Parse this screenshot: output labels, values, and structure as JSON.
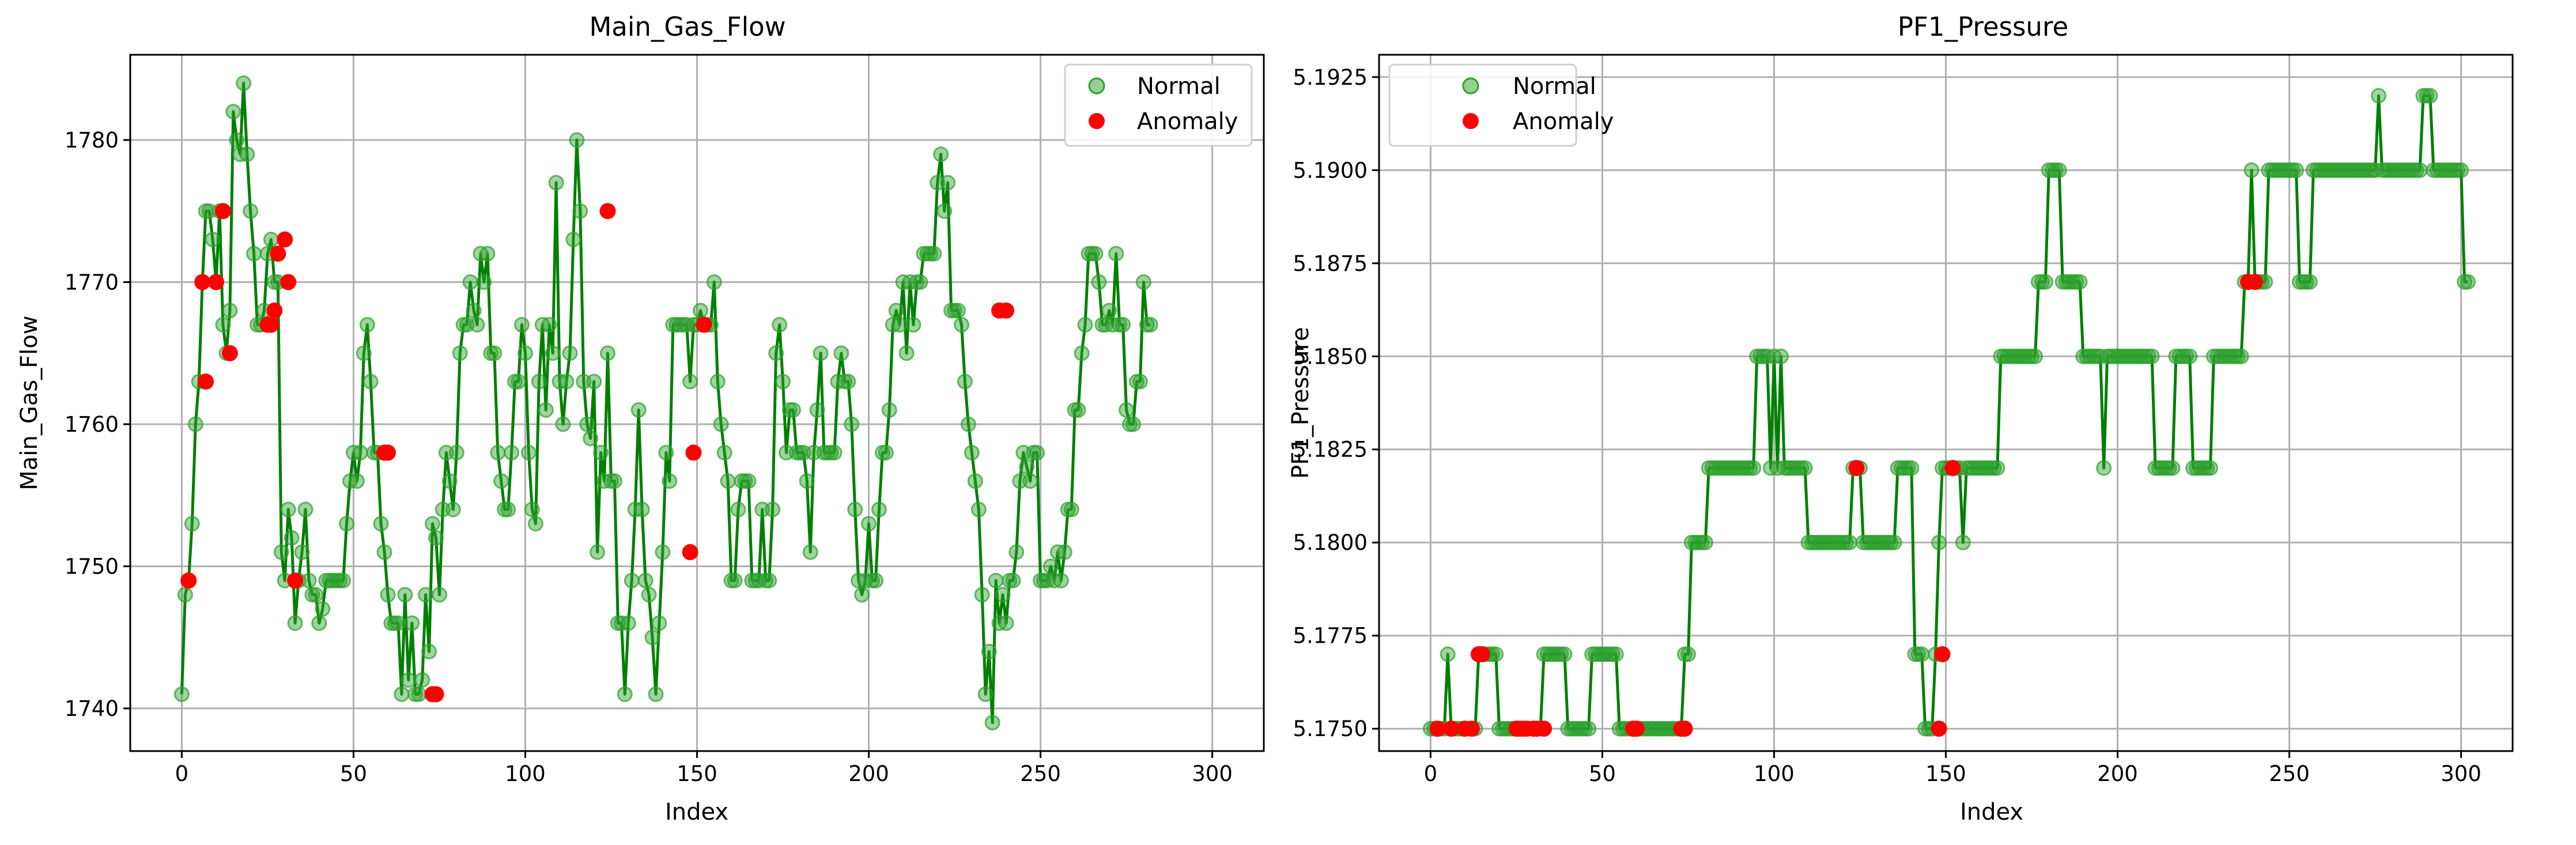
{
  "colors": {
    "line": "#008000",
    "normal_marker": "#2ca02c",
    "anomaly_marker": "#ff0000",
    "grid": "#b0b0b0"
  },
  "chart_data": [
    {
      "type": "line",
      "title": "Main_Gas_Flow",
      "xlabel": "Index",
      "ylabel": "Main_Gas_Flow",
      "xlim": [
        -15,
        315
      ],
      "ylim": [
        1737,
        1786
      ],
      "xticks": [
        0,
        50,
        100,
        150,
        200,
        250,
        300
      ],
      "yticks": [
        1740,
        1750,
        1760,
        1770,
        1780
      ],
      "grid": true,
      "legend_position": "top-right",
      "legend": [
        "Normal",
        "Anomaly"
      ],
      "series": [
        {
          "name": "Normal",
          "x_start": 0,
          "y": [
            1741,
            1748,
            1749,
            1753,
            1760,
            1763,
            1770,
            1775,
            1775,
            1773,
            1770,
            1775,
            1767,
            1765,
            1768,
            1782,
            1780,
            1779,
            1784,
            1779,
            1775,
            1772,
            1767,
            1767,
            1768,
            1772,
            1773,
            1770,
            1770,
            1751,
            1749,
            1754,
            1752,
            1746,
            1749,
            1751,
            1754,
            1749,
            1748,
            1748,
            1746,
            1747,
            1749,
            1749,
            1749,
            1749,
            1749,
            1749,
            1753,
            1756,
            1758,
            1756,
            1758,
            1765,
            1767,
            1763,
            1758,
            1758,
            1753,
            1751,
            1748,
            1746,
            1746,
            1746,
            1741,
            1748,
            1742,
            1746,
            1741,
            1741,
            1742,
            1748,
            1744,
            1753,
            1752,
            1748,
            1754,
            1758,
            1756,
            1754,
            1758,
            1765,
            1767,
            1767,
            1770,
            1768,
            1767,
            1772,
            1770,
            1772,
            1765,
            1765,
            1758,
            1756,
            1754,
            1754,
            1758,
            1763,
            1763,
            1767,
            1765,
            1758,
            1754,
            1753,
            1763,
            1767,
            1761,
            1767,
            1765,
            1777,
            1763,
            1760,
            1763,
            1765,
            1773,
            1780,
            1775,
            1763,
            1760,
            1759,
            1763,
            1751,
            1758,
            1756,
            1765,
            1756,
            1756,
            1746,
            1746,
            1741,
            1746,
            1749,
            1754,
            1761,
            1754,
            1749,
            1748,
            1745,
            1741,
            1746,
            1751,
            1758,
            1756,
            1767,
            1767,
            1767,
            1767,
            1767,
            1763,
            1767,
            1767,
            1768,
            1767,
            1767,
            1767,
            1770,
            1763,
            1760,
            1758,
            1756,
            1749,
            1749,
            1754,
            1756,
            1756,
            1756,
            1749,
            1749,
            1749,
            1754,
            1749,
            1749,
            1754,
            1765,
            1767,
            1763,
            1758,
            1761,
            1761,
            1758,
            1758,
            1758,
            1756,
            1751,
            1758,
            1761,
            1765,
            1758,
            1758,
            1758,
            1758,
            1763,
            1765,
            1763,
            1763,
            1760,
            1754,
            1749,
            1748,
            1749,
            1753,
            1749,
            1749,
            1754,
            1758,
            1758,
            1761,
            1767,
            1768,
            1767,
            1770,
            1765,
            1770,
            1767,
            1770,
            1770,
            1772,
            1772,
            1772,
            1772,
            1777,
            1779,
            1775,
            1777,
            1768,
            1768,
            1768,
            1767,
            1763,
            1760,
            1758,
            1756,
            1754,
            1748,
            1741,
            1744,
            1739,
            1749,
            1746,
            1748,
            1746,
            1749,
            1749,
            1751,
            1756,
            1758,
            1757,
            1756,
            1758,
            1758,
            1749,
            1749,
            1749,
            1750,
            1749,
            1751,
            1749,
            1751,
            1754,
            1754,
            1761,
            1761,
            1765,
            1767,
            1772,
            1772,
            1772,
            1770,
            1767,
            1767,
            1768,
            1767,
            1772,
            1767,
            1767,
            1761,
            1760,
            1760,
            1763,
            1763,
            1770,
            1767,
            1767
          ]
        },
        {
          "name": "Anomaly",
          "points": [
            [
              2,
              1749
            ],
            [
              6,
              1770
            ],
            [
              7,
              1763
            ],
            [
              10,
              1770
            ],
            [
              12,
              1775
            ],
            [
              14,
              1765
            ],
            [
              25,
              1767
            ],
            [
              26,
              1767
            ],
            [
              27,
              1768
            ],
            [
              28,
              1772
            ],
            [
              30,
              1773
            ],
            [
              31,
              1770
            ],
            [
              33,
              1749
            ],
            [
              59,
              1758
            ],
            [
              60,
              1758
            ],
            [
              73,
              1741
            ],
            [
              74,
              1741
            ],
            [
              124,
              1775
            ],
            [
              148,
              1751
            ],
            [
              149,
              1758
            ],
            [
              152,
              1767
            ],
            [
              238,
              1768
            ],
            [
              240,
              1768
            ]
          ]
        }
      ]
    },
    {
      "type": "line",
      "title": "PF1_Pressure",
      "xlabel": "Index",
      "ylabel": "PF1_Pressure",
      "xlim": [
        -15,
        315
      ],
      "ylim": [
        5.1744,
        5.1931
      ],
      "xticks": [
        0,
        50,
        100,
        150,
        200,
        250,
        300
      ],
      "yticks": [
        "5.1750",
        "5.1775",
        "5.1800",
        "5.1825",
        "5.1850",
        "5.1875",
        "5.1900",
        "5.1925"
      ],
      "grid": true,
      "legend_position": "top-left",
      "legend": [
        "Normal",
        "Anomaly"
      ],
      "series": [
        {
          "name": "Normal",
          "x_start": 0,
          "y": [
            5.175,
            5.175,
            5.175,
            5.175,
            5.175,
            5.177,
            5.175,
            5.175,
            5.175,
            5.175,
            5.175,
            5.175,
            5.175,
            5.175,
            5.177,
            5.177,
            5.177,
            5.177,
            5.177,
            5.177,
            5.175,
            5.175,
            5.175,
            5.175,
            5.175,
            5.175,
            5.175,
            5.175,
            5.175,
            5.175,
            5.175,
            5.175,
            5.175,
            5.177,
            5.177,
            5.177,
            5.177,
            5.177,
            5.177,
            5.177,
            5.175,
            5.175,
            5.175,
            5.175,
            5.175,
            5.175,
            5.175,
            5.177,
            5.177,
            5.177,
            5.177,
            5.177,
            5.177,
            5.177,
            5.177,
            5.175,
            5.175,
            5.175,
            5.175,
            5.175,
            5.175,
            5.175,
            5.175,
            5.175,
            5.175,
            5.175,
            5.175,
            5.175,
            5.175,
            5.175,
            5.175,
            5.175,
            5.175,
            5.175,
            5.177,
            5.177,
            5.18,
            5.18,
            5.18,
            5.18,
            5.18,
            5.182,
            5.182,
            5.182,
            5.182,
            5.182,
            5.182,
            5.182,
            5.182,
            5.182,
            5.182,
            5.182,
            5.182,
            5.182,
            5.182,
            5.185,
            5.185,
            5.185,
            5.185,
            5.182,
            5.185,
            5.182,
            5.185,
            5.182,
            5.182,
            5.182,
            5.182,
            5.182,
            5.182,
            5.182,
            5.18,
            5.18,
            5.18,
            5.18,
            5.18,
            5.18,
            5.18,
            5.18,
            5.18,
            5.18,
            5.18,
            5.18,
            5.18,
            5.182,
            5.182,
            5.182,
            5.18,
            5.18,
            5.18,
            5.18,
            5.18,
            5.18,
            5.18,
            5.18,
            5.18,
            5.18,
            5.182,
            5.182,
            5.182,
            5.182,
            5.182,
            5.177,
            5.177,
            5.177,
            5.175,
            5.175,
            5.175,
            5.177,
            5.18,
            5.182,
            5.182,
            5.182,
            5.182,
            5.182,
            5.182,
            5.18,
            5.182,
            5.182,
            5.182,
            5.182,
            5.182,
            5.182,
            5.182,
            5.182,
            5.182,
            5.182,
            5.185,
            5.185,
            5.185,
            5.185,
            5.185,
            5.185,
            5.185,
            5.185,
            5.185,
            5.185,
            5.185,
            5.187,
            5.187,
            5.187,
            5.19,
            5.19,
            5.19,
            5.19,
            5.187,
            5.187,
            5.187,
            5.187,
            5.187,
            5.187,
            5.185,
            5.185,
            5.185,
            5.185,
            5.185,
            5.185,
            5.182,
            5.185,
            5.185,
            5.185,
            5.185,
            5.185,
            5.185,
            5.185,
            5.185,
            5.185,
            5.185,
            5.185,
            5.185,
            5.185,
            5.185,
            5.182,
            5.182,
            5.182,
            5.182,
            5.182,
            5.182,
            5.185,
            5.185,
            5.185,
            5.185,
            5.185,
            5.182,
            5.182,
            5.182,
            5.182,
            5.182,
            5.182,
            5.185,
            5.185,
            5.185,
            5.185,
            5.185,
            5.185,
            5.185,
            5.185,
            5.185,
            5.187,
            5.187,
            5.19,
            5.187,
            5.187,
            5.187,
            5.187,
            5.19,
            5.19,
            5.19,
            5.19,
            5.19,
            5.19,
            5.19,
            5.19,
            5.19,
            5.187,
            5.187,
            5.187,
            5.187,
            5.19,
            5.19,
            5.19,
            5.19,
            5.19,
            5.19,
            5.19,
            5.19,
            5.19,
            5.19,
            5.19,
            5.19,
            5.19,
            5.19,
            5.19,
            5.19,
            5.19,
            5.19,
            5.19,
            5.192,
            5.19,
            5.19,
            5.19,
            5.19,
            5.19,
            5.19,
            5.19,
            5.19,
            5.19,
            5.19,
            5.19,
            5.19,
            5.192,
            5.192,
            5.192,
            5.19,
            5.19,
            5.19,
            5.19,
            5.19,
            5.19,
            5.19,
            5.19,
            5.19,
            5.187,
            5.187
          ]
        },
        {
          "name": "Anomaly",
          "points": [
            [
              2,
              5.175
            ],
            [
              6,
              5.175
            ],
            [
              10,
              5.175
            ],
            [
              12,
              5.175
            ],
            [
              14,
              5.177
            ],
            [
              15,
              5.177
            ],
            [
              25,
              5.175
            ],
            [
              26,
              5.175
            ],
            [
              27,
              5.175
            ],
            [
              28,
              5.175
            ],
            [
              30,
              5.175
            ],
            [
              31,
              5.175
            ],
            [
              33,
              5.175
            ],
            [
              59,
              5.175
            ],
            [
              60,
              5.175
            ],
            [
              73,
              5.175
            ],
            [
              74,
              5.175
            ],
            [
              124,
              5.182
            ],
            [
              148,
              5.175
            ],
            [
              149,
              5.177
            ],
            [
              152,
              5.182
            ],
            [
              238,
              5.187
            ],
            [
              240,
              5.187
            ]
          ]
        }
      ]
    }
  ]
}
